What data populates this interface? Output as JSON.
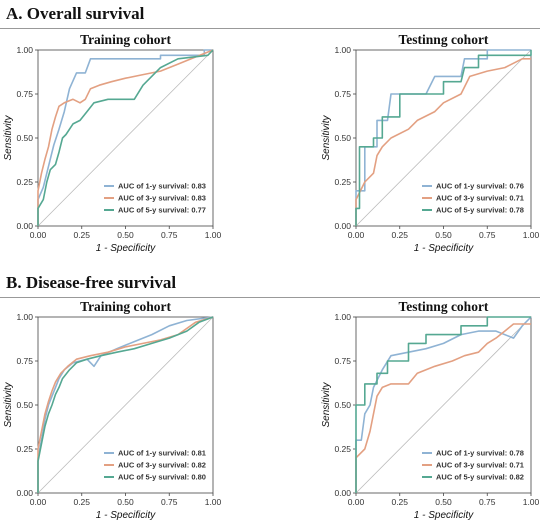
{
  "sections": [
    {
      "title": "A. Overall survival"
    },
    {
      "title": "B. Disease-free survival"
    }
  ],
  "colors": {
    "y1": "#8fb3d4",
    "y3": "#e3a082",
    "y5": "#55a892",
    "diag": "#bbbbbb"
  },
  "chart_data": [
    {
      "type": "line",
      "title": "Training cohort",
      "xlabel": "1 - Specificity",
      "ylabel": "Sensitivity",
      "xlim": [
        0,
        1
      ],
      "ylim": [
        0,
        1
      ],
      "xticks": [
        "0.00",
        "0.25",
        "0.50",
        "0.75",
        "1.00"
      ],
      "yticks": [
        "0.00",
        "0.25",
        "0.50",
        "0.75",
        "1.00"
      ],
      "series": [
        {
          "name": "AUC of 1-y survival: 0.83",
          "color_key": "y1",
          "points": [
            [
              0,
              0
            ],
            [
              0,
              0.15
            ],
            [
              0.03,
              0.22
            ],
            [
              0.05,
              0.3
            ],
            [
              0.07,
              0.38
            ],
            [
              0.09,
              0.46
            ],
            [
              0.12,
              0.55
            ],
            [
              0.15,
              0.65
            ],
            [
              0.18,
              0.78
            ],
            [
              0.22,
              0.87
            ],
            [
              0.27,
              0.87
            ],
            [
              0.3,
              0.95
            ],
            [
              0.7,
              0.95
            ],
            [
              0.7,
              0.97
            ],
            [
              0.95,
              0.97
            ],
            [
              0.95,
              1
            ],
            [
              1,
              1
            ]
          ]
        },
        {
          "name": "AUC of 3-y survival: 0.83",
          "color_key": "y3",
          "points": [
            [
              0,
              0
            ],
            [
              0,
              0.2
            ],
            [
              0.02,
              0.3
            ],
            [
              0.04,
              0.38
            ],
            [
              0.06,
              0.45
            ],
            [
              0.08,
              0.55
            ],
            [
              0.1,
              0.62
            ],
            [
              0.12,
              0.68
            ],
            [
              0.15,
              0.7
            ],
            [
              0.2,
              0.72
            ],
            [
              0.24,
              0.7
            ],
            [
              0.27,
              0.72
            ],
            [
              0.3,
              0.78
            ],
            [
              0.35,
              0.8
            ],
            [
              0.42,
              0.82
            ],
            [
              0.5,
              0.84
            ],
            [
              0.6,
              0.86
            ],
            [
              0.7,
              0.88
            ],
            [
              0.8,
              0.92
            ],
            [
              0.9,
              0.96
            ],
            [
              1,
              1
            ]
          ]
        },
        {
          "name": "AUC of 5-y survival: 0.77",
          "color_key": "y5",
          "points": [
            [
              0,
              0
            ],
            [
              0,
              0.1
            ],
            [
              0.03,
              0.15
            ],
            [
              0.05,
              0.25
            ],
            [
              0.07,
              0.32
            ],
            [
              0.1,
              0.35
            ],
            [
              0.12,
              0.42
            ],
            [
              0.14,
              0.5
            ],
            [
              0.16,
              0.52
            ],
            [
              0.2,
              0.58
            ],
            [
              0.24,
              0.6
            ],
            [
              0.28,
              0.65
            ],
            [
              0.32,
              0.7
            ],
            [
              0.4,
              0.72
            ],
            [
              0.55,
              0.72
            ],
            [
              0.6,
              0.8
            ],
            [
              0.7,
              0.9
            ],
            [
              0.8,
              0.95
            ],
            [
              0.97,
              0.97
            ],
            [
              1,
              1
            ]
          ]
        }
      ]
    },
    {
      "type": "line",
      "title": "Testinng cohort",
      "xlabel": "1 - Specificity",
      "ylabel": "Sensitivity",
      "xlim": [
        0,
        1
      ],
      "ylim": [
        0,
        1
      ],
      "xticks": [
        "0.00",
        "0.25",
        "0.50",
        "0.75",
        "1.00"
      ],
      "yticks": [
        "0.00",
        "0.25",
        "0.50",
        "0.75",
        "1.00"
      ],
      "series": [
        {
          "name": "AUC of 1-y survival: 0.76",
          "color_key": "y1",
          "points": [
            [
              0,
              0
            ],
            [
              0,
              0.2
            ],
            [
              0.05,
              0.2
            ],
            [
              0.05,
              0.45
            ],
            [
              0.12,
              0.45
            ],
            [
              0.12,
              0.6
            ],
            [
              0.18,
              0.6
            ],
            [
              0.2,
              0.75
            ],
            [
              0.4,
              0.75
            ],
            [
              0.45,
              0.85
            ],
            [
              0.6,
              0.85
            ],
            [
              0.62,
              0.95
            ],
            [
              0.75,
              0.95
            ],
            [
              0.75,
              1
            ],
            [
              1,
              1
            ]
          ]
        },
        {
          "name": "AUC of 3-y survival: 0.71",
          "color_key": "y3",
          "points": [
            [
              0,
              0
            ],
            [
              0,
              0.15
            ],
            [
              0.05,
              0.25
            ],
            [
              0.1,
              0.3
            ],
            [
              0.12,
              0.4
            ],
            [
              0.15,
              0.45
            ],
            [
              0.2,
              0.5
            ],
            [
              0.3,
              0.55
            ],
            [
              0.35,
              0.6
            ],
            [
              0.45,
              0.65
            ],
            [
              0.5,
              0.7
            ],
            [
              0.6,
              0.75
            ],
            [
              0.65,
              0.85
            ],
            [
              0.75,
              0.88
            ],
            [
              0.85,
              0.9
            ],
            [
              0.95,
              0.95
            ],
            [
              1,
              0.95
            ]
          ]
        },
        {
          "name": "AUC of 5-y survival: 0.78",
          "color_key": "y5",
          "points": [
            [
              0,
              0
            ],
            [
              0,
              0.1
            ],
            [
              0.02,
              0.1
            ],
            [
              0.02,
              0.45
            ],
            [
              0.1,
              0.45
            ],
            [
              0.1,
              0.5
            ],
            [
              0.15,
              0.5
            ],
            [
              0.15,
              0.62
            ],
            [
              0.25,
              0.62
            ],
            [
              0.25,
              0.75
            ],
            [
              0.5,
              0.75
            ],
            [
              0.5,
              0.82
            ],
            [
              0.6,
              0.82
            ],
            [
              0.62,
              0.9
            ],
            [
              0.7,
              0.9
            ],
            [
              0.7,
              0.97
            ],
            [
              1,
              0.97
            ],
            [
              1,
              1
            ]
          ]
        }
      ]
    },
    {
      "type": "line",
      "title": "Training cohort",
      "xlabel": "1 - Specificity",
      "ylabel": "Sensitivity",
      "xlim": [
        0,
        1
      ],
      "ylim": [
        0,
        1
      ],
      "xticks": [
        "0.00",
        "0.25",
        "0.50",
        "0.75",
        "1.00"
      ],
      "yticks": [
        "0.00",
        "0.25",
        "0.50",
        "0.75",
        "1.00"
      ],
      "series": [
        {
          "name": "AUC of 1-y survival: 0.81",
          "color_key": "y1",
          "points": [
            [
              0,
              0
            ],
            [
              0,
              0.2
            ],
            [
              0.02,
              0.3
            ],
            [
              0.04,
              0.42
            ],
            [
              0.06,
              0.5
            ],
            [
              0.08,
              0.55
            ],
            [
              0.1,
              0.6
            ],
            [
              0.12,
              0.65
            ],
            [
              0.15,
              0.7
            ],
            [
              0.2,
              0.74
            ],
            [
              0.28,
              0.76
            ],
            [
              0.32,
              0.72
            ],
            [
              0.36,
              0.78
            ],
            [
              0.45,
              0.82
            ],
            [
              0.55,
              0.86
            ],
            [
              0.65,
              0.9
            ],
            [
              0.75,
              0.95
            ],
            [
              0.85,
              0.98
            ],
            [
              1,
              1
            ]
          ]
        },
        {
          "name": "AUC of 3-y survival: 0.82",
          "color_key": "y3",
          "points": [
            [
              0,
              0
            ],
            [
              0,
              0.25
            ],
            [
              0.02,
              0.35
            ],
            [
              0.04,
              0.45
            ],
            [
              0.06,
              0.52
            ],
            [
              0.08,
              0.58
            ],
            [
              0.1,
              0.63
            ],
            [
              0.13,
              0.68
            ],
            [
              0.17,
              0.72
            ],
            [
              0.22,
              0.76
            ],
            [
              0.3,
              0.78
            ],
            [
              0.4,
              0.8
            ],
            [
              0.5,
              0.83
            ],
            [
              0.6,
              0.85
            ],
            [
              0.7,
              0.87
            ],
            [
              0.8,
              0.9
            ],
            [
              0.9,
              0.97
            ],
            [
              1,
              1
            ]
          ]
        },
        {
          "name": "AUC of 5-y survival: 0.80",
          "color_key": "y5",
          "points": [
            [
              0,
              0
            ],
            [
              0,
              0.18
            ],
            [
              0.02,
              0.28
            ],
            [
              0.04,
              0.38
            ],
            [
              0.06,
              0.45
            ],
            [
              0.08,
              0.5
            ],
            [
              0.1,
              0.56
            ],
            [
              0.12,
              0.6
            ],
            [
              0.14,
              0.65
            ],
            [
              0.18,
              0.7
            ],
            [
              0.22,
              0.74
            ],
            [
              0.28,
              0.76
            ],
            [
              0.36,
              0.78
            ],
            [
              0.45,
              0.8
            ],
            [
              0.55,
              0.82
            ],
            [
              0.65,
              0.85
            ],
            [
              0.75,
              0.88
            ],
            [
              0.85,
              0.92
            ],
            [
              0.92,
              0.97
            ],
            [
              1,
              1
            ]
          ]
        }
      ]
    },
    {
      "type": "line",
      "title": "Testinng cohort",
      "xlabel": "1 - Specificity",
      "ylabel": "Sensitivity",
      "xlim": [
        0,
        1
      ],
      "ylim": [
        0,
        1
      ],
      "xticks": [
        "0.00",
        "0.25",
        "0.50",
        "0.75",
        "1.00"
      ],
      "yticks": [
        "0.00",
        "0.25",
        "0.50",
        "0.75",
        "1.00"
      ],
      "series": [
        {
          "name": "AUC of 1-y survival: 0.78",
          "color_key": "y1",
          "points": [
            [
              0,
              0
            ],
            [
              0,
              0.3
            ],
            [
              0.03,
              0.3
            ],
            [
              0.05,
              0.45
            ],
            [
              0.08,
              0.5
            ],
            [
              0.1,
              0.6
            ],
            [
              0.15,
              0.7
            ],
            [
              0.2,
              0.78
            ],
            [
              0.3,
              0.8
            ],
            [
              0.4,
              0.82
            ],
            [
              0.5,
              0.85
            ],
            [
              0.6,
              0.9
            ],
            [
              0.7,
              0.92
            ],
            [
              0.8,
              0.92
            ],
            [
              0.9,
              0.88
            ],
            [
              0.95,
              0.95
            ],
            [
              1,
              1
            ]
          ]
        },
        {
          "name": "AUC of 3-y survival: 0.71",
          "color_key": "y3",
          "points": [
            [
              0,
              0
            ],
            [
              0,
              0.2
            ],
            [
              0.05,
              0.25
            ],
            [
              0.08,
              0.35
            ],
            [
              0.1,
              0.45
            ],
            [
              0.12,
              0.55
            ],
            [
              0.15,
              0.6
            ],
            [
              0.2,
              0.62
            ],
            [
              0.3,
              0.62
            ],
            [
              0.35,
              0.68
            ],
            [
              0.45,
              0.72
            ],
            [
              0.55,
              0.75
            ],
            [
              0.62,
              0.78
            ],
            [
              0.7,
              0.8
            ],
            [
              0.75,
              0.85
            ],
            [
              0.8,
              0.88
            ],
            [
              0.85,
              0.92
            ],
            [
              0.9,
              0.96
            ],
            [
              1,
              0.96
            ]
          ]
        },
        {
          "name": "AUC of 5-y survival: 0.82",
          "color_key": "y5",
          "points": [
            [
              0,
              0
            ],
            [
              0,
              0.5
            ],
            [
              0.05,
              0.5
            ],
            [
              0.05,
              0.62
            ],
            [
              0.12,
              0.62
            ],
            [
              0.12,
              0.68
            ],
            [
              0.18,
              0.68
            ],
            [
              0.18,
              0.75
            ],
            [
              0.3,
              0.75
            ],
            [
              0.3,
              0.85
            ],
            [
              0.4,
              0.85
            ],
            [
              0.4,
              0.9
            ],
            [
              0.6,
              0.9
            ],
            [
              0.6,
              0.95
            ],
            [
              0.75,
              0.95
            ],
            [
              0.75,
              1
            ],
            [
              1,
              1
            ]
          ]
        }
      ]
    }
  ]
}
